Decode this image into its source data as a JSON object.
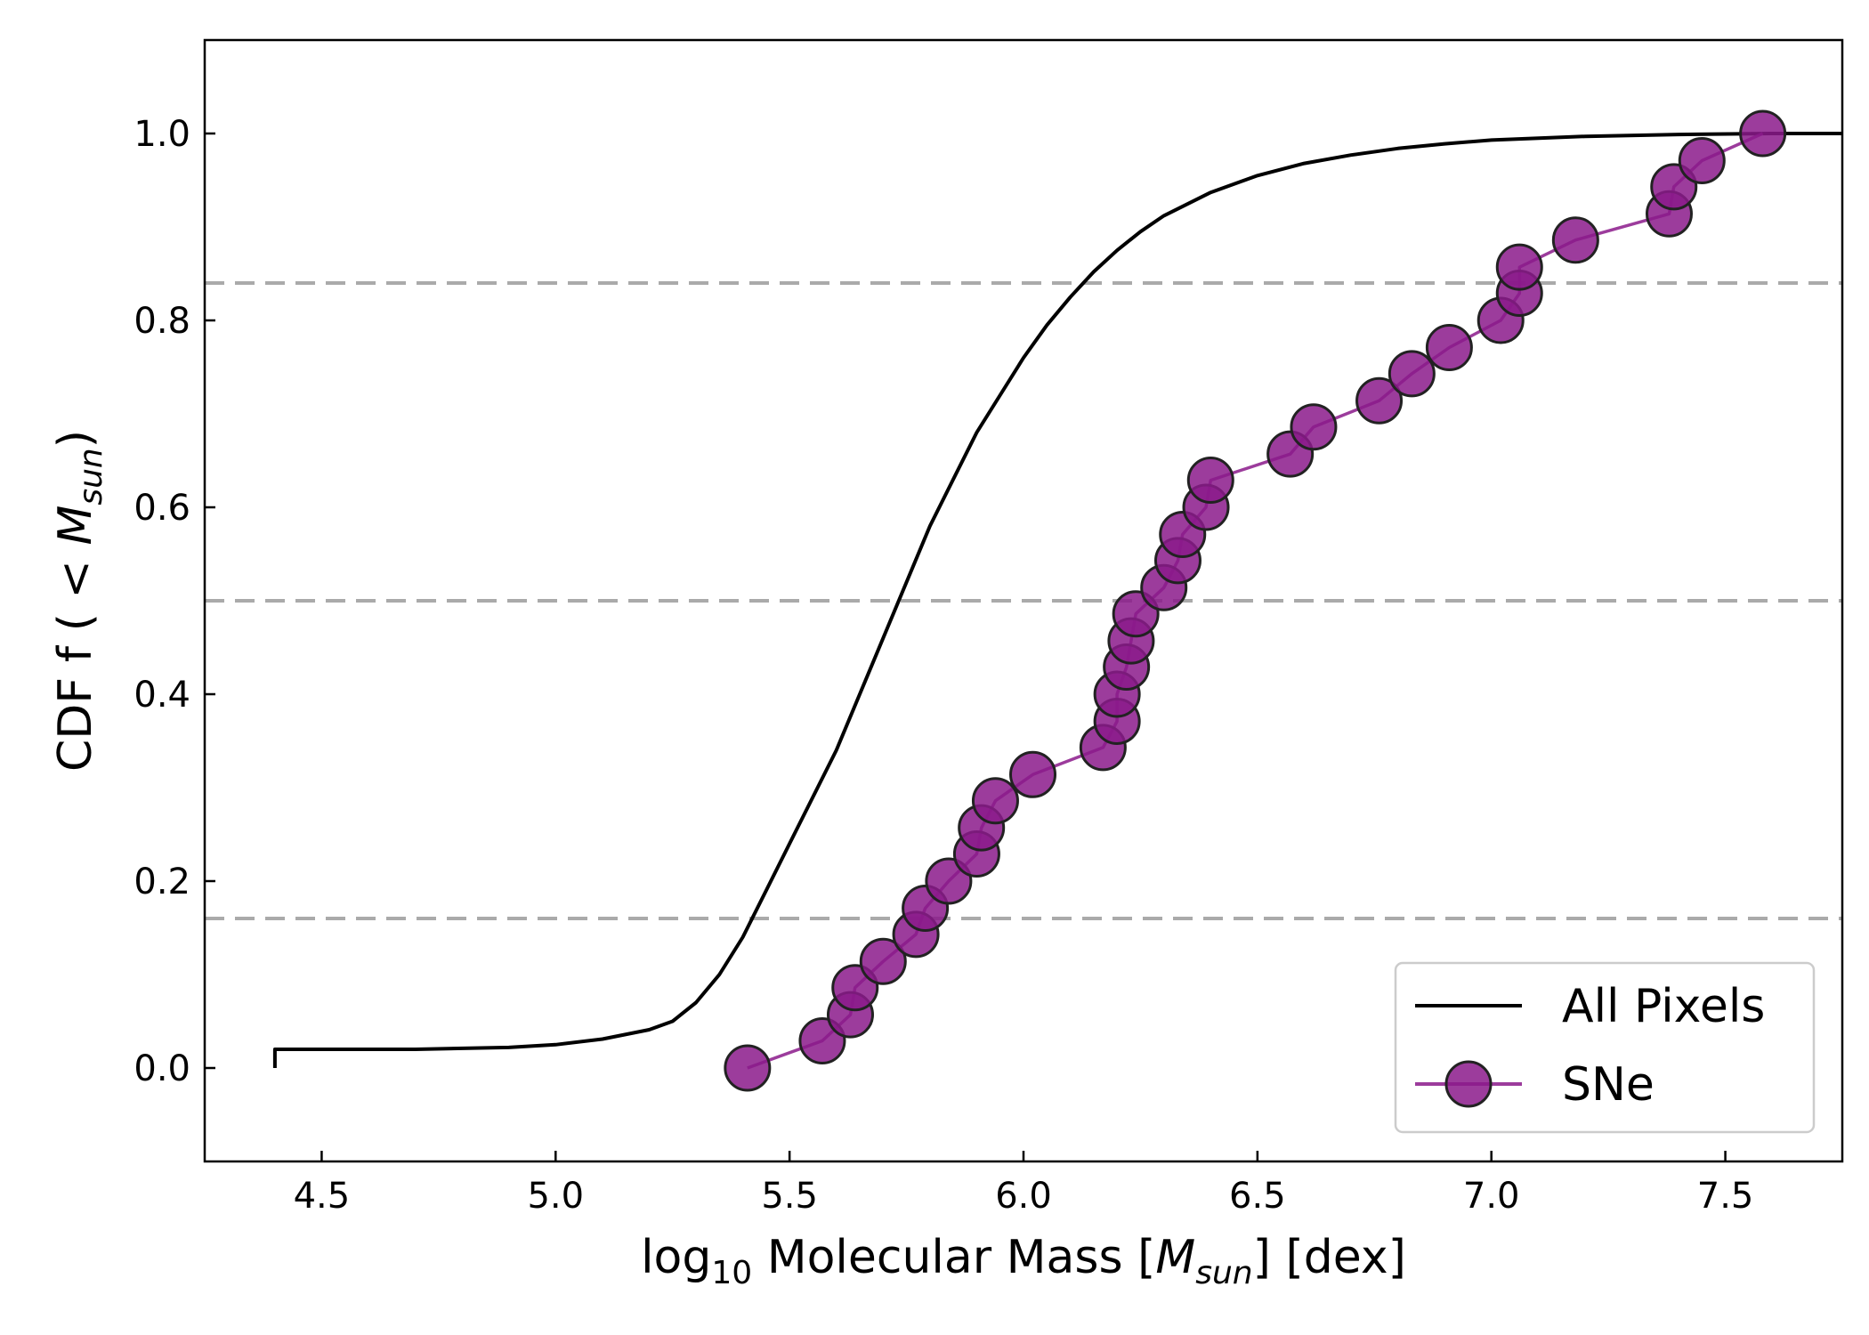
{
  "chart_data": {
    "type": "line",
    "xlabel": {
      "pre": "log",
      "sub": "10",
      "mid": " Molecular Mass [",
      "italic": "M",
      "italic_sub": "sun",
      "post": "] [dex]"
    },
    "ylabel": {
      "pre": "CDF f ( < ",
      "italic": "M",
      "italic_sub": "sun",
      "post": ")"
    },
    "xlim": [
      4.25,
      7.75
    ],
    "ylim": [
      -0.1,
      1.1
    ],
    "xticks": [
      "4.5",
      "5.0",
      "5.5",
      "6.0",
      "6.5",
      "7.0",
      "7.5"
    ],
    "yticks": [
      "0.0",
      "0.2",
      "0.4",
      "0.6",
      "0.8",
      "1.0"
    ],
    "reference_lines": [
      0.16,
      0.5,
      0.84
    ],
    "legend_position": "lower-right",
    "series": [
      {
        "name": "All Pixels",
        "color": "#000000",
        "marker": "none",
        "x": [
          4.4,
          4.4,
          4.5,
          4.7,
          4.9,
          5.0,
          5.1,
          5.2,
          5.25,
          5.3,
          5.35,
          5.4,
          5.45,
          5.5,
          5.55,
          5.6,
          5.65,
          5.7,
          5.75,
          5.8,
          5.85,
          5.9,
          5.95,
          6.0,
          6.05,
          6.1,
          6.15,
          6.2,
          6.25,
          6.3,
          6.4,
          6.5,
          6.6,
          6.7,
          6.8,
          6.9,
          7.0,
          7.2,
          7.4,
          7.6,
          7.75
        ],
        "y": [
          0.0,
          0.02,
          0.02,
          0.02,
          0.022,
          0.025,
          0.031,
          0.041,
          0.05,
          0.07,
          0.1,
          0.14,
          0.19,
          0.24,
          0.29,
          0.34,
          0.4,
          0.46,
          0.52,
          0.58,
          0.63,
          0.68,
          0.72,
          0.76,
          0.795,
          0.825,
          0.852,
          0.875,
          0.895,
          0.912,
          0.937,
          0.955,
          0.968,
          0.977,
          0.984,
          0.989,
          0.993,
          0.997,
          0.999,
          1.0,
          1.0
        ]
      },
      {
        "name": "SNe",
        "color": "#8b1a8b",
        "marker": "circle",
        "x": [
          5.41,
          5.57,
          5.63,
          5.64,
          5.7,
          5.77,
          5.79,
          5.84,
          5.9,
          5.91,
          5.94,
          6.02,
          6.17,
          6.2,
          6.2,
          6.22,
          6.23,
          6.24,
          6.3,
          6.33,
          6.34,
          6.39,
          6.4,
          6.57,
          6.62,
          6.76,
          6.83,
          6.91,
          7.02,
          7.06,
          7.06,
          7.18,
          7.38,
          7.39,
          7.45,
          7.58
        ],
        "y": [
          0.0,
          0.029,
          0.057,
          0.086,
          0.114,
          0.143,
          0.171,
          0.2,
          0.229,
          0.257,
          0.286,
          0.314,
          0.343,
          0.371,
          0.4,
          0.429,
          0.457,
          0.486,
          0.514,
          0.543,
          0.571,
          0.6,
          0.629,
          0.657,
          0.686,
          0.714,
          0.743,
          0.771,
          0.8,
          0.829,
          0.857,
          0.886,
          0.914,
          0.943,
          0.971,
          1.0
        ]
      }
    ]
  }
}
